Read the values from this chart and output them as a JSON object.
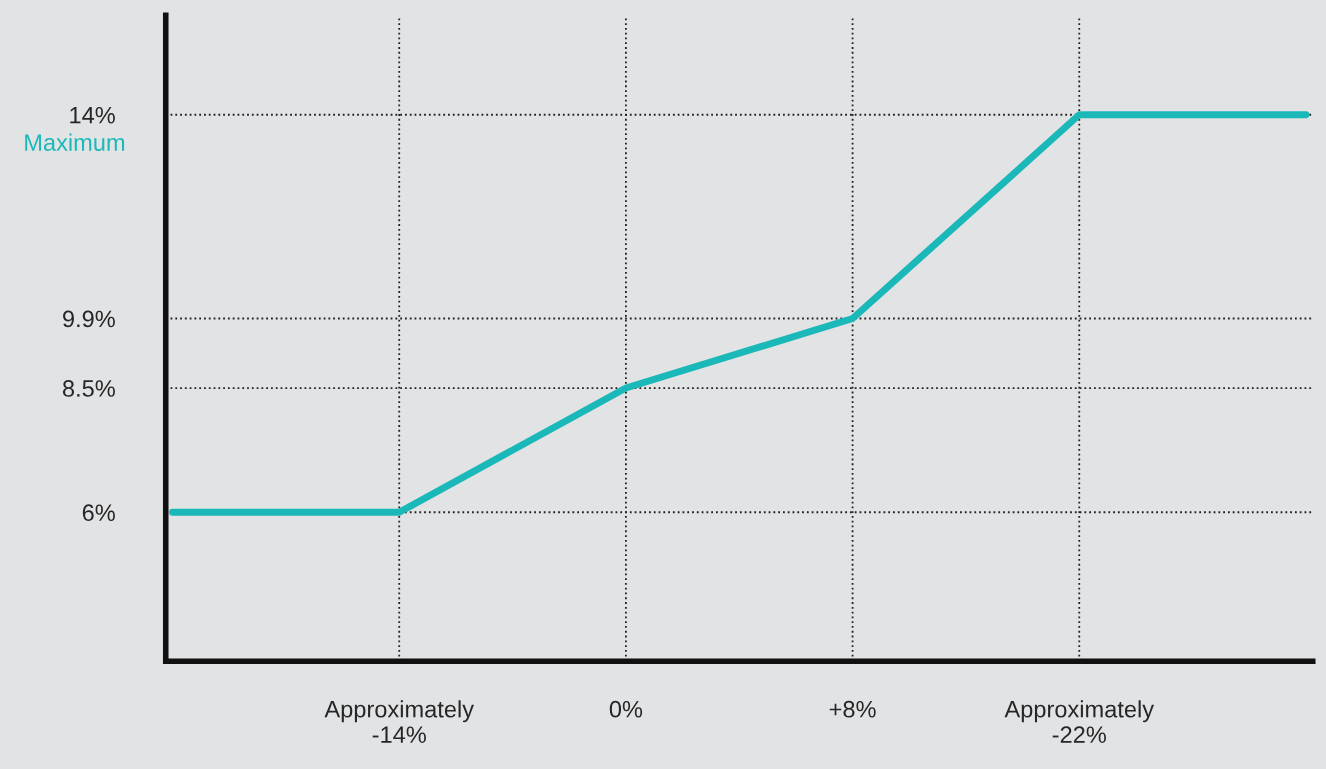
{
  "chart_data": {
    "type": "line",
    "categories": [
      null,
      "Approximately\n-14%",
      "0%",
      "+8%",
      "Approximately\n-22%",
      null
    ],
    "series": [
      {
        "color": "#1ab8b8",
        "values": [
          6,
          6,
          8.5,
          9.9,
          14,
          14
        ]
      }
    ],
    "ylim": [
      3,
      16
    ],
    "yticks": [
      {
        "value": 6,
        "label": "6%"
      },
      {
        "value": 8.5,
        "label": "8.5%"
      },
      {
        "value": 9.9,
        "label": "9.9%"
      },
      {
        "value": 14,
        "label": "14%"
      }
    ],
    "annotations": [
      "Maximum"
    ],
    "grid": true,
    "marker": "none",
    "line_style": "solid"
  }
}
